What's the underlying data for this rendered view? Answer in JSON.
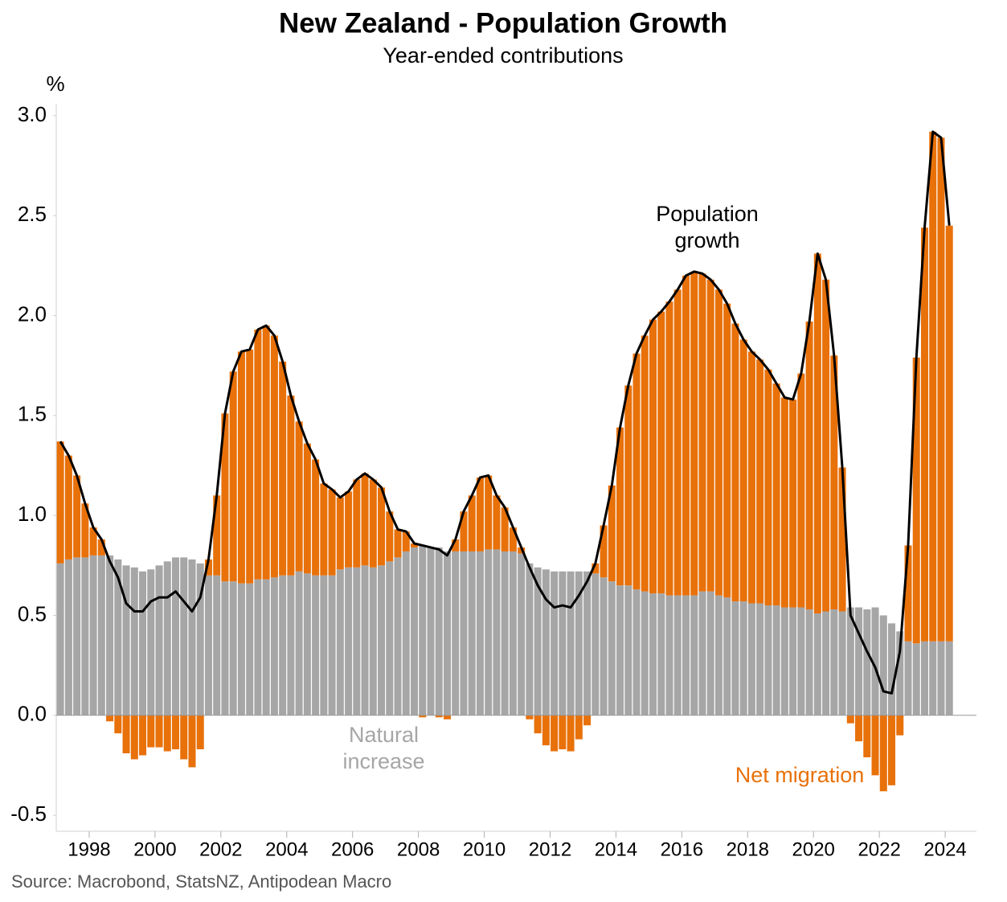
{
  "chart_data": {
    "type": "bar",
    "title": "New Zealand - Population Growth",
    "subtitle": "Year-ended contributions",
    "y_label": "%",
    "source": "Source: Macrobond, StatsNZ, Antipodean Macro",
    "stacked": true,
    "x": [
      1997.125,
      1997.375,
      1997.625,
      1997.875,
      1998.125,
      1998.375,
      1998.625,
      1998.875,
      1999.125,
      1999.375,
      1999.625,
      1999.875,
      2000.125,
      2000.375,
      2000.625,
      2000.875,
      2001.125,
      2001.375,
      2001.625,
      2001.875,
      2002.125,
      2002.375,
      2002.625,
      2002.875,
      2003.125,
      2003.375,
      2003.625,
      2003.875,
      2004.125,
      2004.375,
      2004.625,
      2004.875,
      2005.125,
      2005.375,
      2005.625,
      2005.875,
      2006.125,
      2006.375,
      2006.625,
      2006.875,
      2007.125,
      2007.375,
      2007.625,
      2007.875,
      2008.125,
      2008.375,
      2008.625,
      2008.875,
      2009.125,
      2009.375,
      2009.625,
      2009.875,
      2010.125,
      2010.375,
      2010.625,
      2010.875,
      2011.125,
      2011.375,
      2011.625,
      2011.875,
      2012.125,
      2012.375,
      2012.625,
      2012.875,
      2013.125,
      2013.375,
      2013.625,
      2013.875,
      2014.125,
      2014.375,
      2014.625,
      2014.875,
      2015.125,
      2015.375,
      2015.625,
      2015.875,
      2016.125,
      2016.375,
      2016.625,
      2016.875,
      2017.125,
      2017.375,
      2017.625,
      2017.875,
      2018.125,
      2018.375,
      2018.625,
      2018.875,
      2019.125,
      2019.375,
      2019.625,
      2019.875,
      2020.125,
      2020.375,
      2020.625,
      2020.875,
      2021.125,
      2021.375,
      2021.625,
      2021.875,
      2022.125,
      2022.375,
      2022.625,
      2022.875,
      2023.125,
      2023.375,
      2023.625,
      2023.875,
      2024.125
    ],
    "series": [
      {
        "name": "Natural increase",
        "type": "bar",
        "color": "#a6a6a6",
        "values": [
          0.76,
          0.78,
          0.79,
          0.79,
          0.8,
          0.8,
          0.8,
          0.78,
          0.75,
          0.74,
          0.72,
          0.73,
          0.75,
          0.77,
          0.79,
          0.79,
          0.78,
          0.76,
          0.7,
          0.7,
          0.67,
          0.67,
          0.66,
          0.66,
          0.68,
          0.68,
          0.69,
          0.7,
          0.7,
          0.72,
          0.71,
          0.7,
          0.7,
          0.7,
          0.73,
          0.74,
          0.74,
          0.75,
          0.74,
          0.75,
          0.77,
          0.79,
          0.82,
          0.84,
          0.85,
          0.84,
          0.84,
          0.82,
          0.82,
          0.82,
          0.82,
          0.82,
          0.83,
          0.83,
          0.82,
          0.82,
          0.81,
          0.76,
          0.74,
          0.73,
          0.72,
          0.72,
          0.72,
          0.72,
          0.72,
          0.71,
          0.69,
          0.67,
          0.65,
          0.65,
          0.63,
          0.62,
          0.61,
          0.61,
          0.6,
          0.6,
          0.6,
          0.6,
          0.62,
          0.62,
          0.6,
          0.59,
          0.57,
          0.57,
          0.56,
          0.56,
          0.55,
          0.55,
          0.54,
          0.54,
          0.54,
          0.53,
          0.51,
          0.52,
          0.53,
          0.52,
          0.54,
          0.54,
          0.53,
          0.54,
          0.5,
          0.46,
          0.42,
          0.37,
          0.36,
          0.37,
          0.37,
          0.37,
          0.37
        ]
      },
      {
        "name": "Net migration",
        "type": "bar",
        "color": "#e8710a",
        "values": [
          0.61,
          0.52,
          0.41,
          0.27,
          0.14,
          0.08,
          -0.03,
          -0.09,
          -0.19,
          -0.22,
          -0.2,
          -0.16,
          -0.16,
          -0.18,
          -0.17,
          -0.22,
          -0.26,
          -0.17,
          0.08,
          0.4,
          0.84,
          1.05,
          1.16,
          1.17,
          1.25,
          1.27,
          1.21,
          1.07,
          0.9,
          0.75,
          0.65,
          0.58,
          0.46,
          0.43,
          0.36,
          0.38,
          0.44,
          0.46,
          0.44,
          0.39,
          0.25,
          0.14,
          0.1,
          0.02,
          -0.01,
          0.0,
          -0.01,
          -0.02,
          0.06,
          0.2,
          0.28,
          0.37,
          0.37,
          0.27,
          0.22,
          0.12,
          0.03,
          -0.02,
          -0.09,
          -0.15,
          -0.18,
          -0.17,
          -0.18,
          -0.12,
          -0.05,
          0.05,
          0.26,
          0.48,
          0.79,
          1.0,
          1.18,
          1.28,
          1.37,
          1.41,
          1.47,
          1.53,
          1.6,
          1.62,
          1.59,
          1.56,
          1.53,
          1.47,
          1.39,
          1.31,
          1.26,
          1.22,
          1.18,
          1.11,
          1.05,
          1.04,
          1.17,
          1.44,
          1.8,
          1.66,
          1.27,
          0.72,
          -0.04,
          -0.13,
          -0.21,
          -0.3,
          -0.38,
          -0.35,
          -0.1,
          0.48,
          1.43,
          2.07,
          2.55,
          2.52,
          2.08
        ]
      },
      {
        "name": "Population growth",
        "type": "line",
        "color": "#000000",
        "values": [
          1.37,
          1.3,
          1.2,
          1.06,
          0.94,
          0.88,
          0.77,
          0.69,
          0.56,
          0.52,
          0.52,
          0.57,
          0.59,
          0.59,
          0.62,
          0.57,
          0.52,
          0.59,
          0.78,
          1.1,
          1.51,
          1.72,
          1.82,
          1.83,
          1.93,
          1.95,
          1.9,
          1.77,
          1.6,
          1.47,
          1.36,
          1.28,
          1.16,
          1.13,
          1.09,
          1.12,
          1.18,
          1.21,
          1.18,
          1.14,
          1.02,
          0.93,
          0.92,
          0.86,
          0.85,
          0.84,
          0.83,
          0.8,
          0.88,
          1.02,
          1.1,
          1.19,
          1.2,
          1.1,
          1.04,
          0.94,
          0.84,
          0.74,
          0.65,
          0.58,
          0.54,
          0.55,
          0.54,
          0.6,
          0.67,
          0.76,
          0.95,
          1.15,
          1.44,
          1.65,
          1.81,
          1.9,
          1.98,
          2.02,
          2.07,
          2.13,
          2.2,
          2.22,
          2.21,
          2.18,
          2.13,
          2.06,
          1.96,
          1.88,
          1.82,
          1.78,
          1.73,
          1.66,
          1.59,
          1.58,
          1.71,
          1.97,
          2.31,
          2.18,
          1.8,
          1.24,
          0.5,
          0.41,
          0.32,
          0.24,
          0.12,
          0.11,
          0.32,
          0.85,
          1.79,
          2.44,
          2.92,
          2.89,
          2.45
        ]
      }
    ],
    "xlim": [
      1997,
      2024.95
    ],
    "xticks": [
      1998,
      2000,
      2002,
      2004,
      2006,
      2008,
      2010,
      2012,
      2014,
      2016,
      2018,
      2020,
      2022,
      2024
    ],
    "ylim": [
      -0.58,
      3.06
    ],
    "yticks": [
      -0.5,
      {
        "value": 0,
        "label": "0.0"
      },
      0.5,
      {
        "value": 1,
        "label": "1.0"
      },
      1.5,
      {
        "value": 2,
        "label": "2.0"
      },
      2.5,
      {
        "value": 3,
        "label": "3.0"
      }
    ]
  }
}
